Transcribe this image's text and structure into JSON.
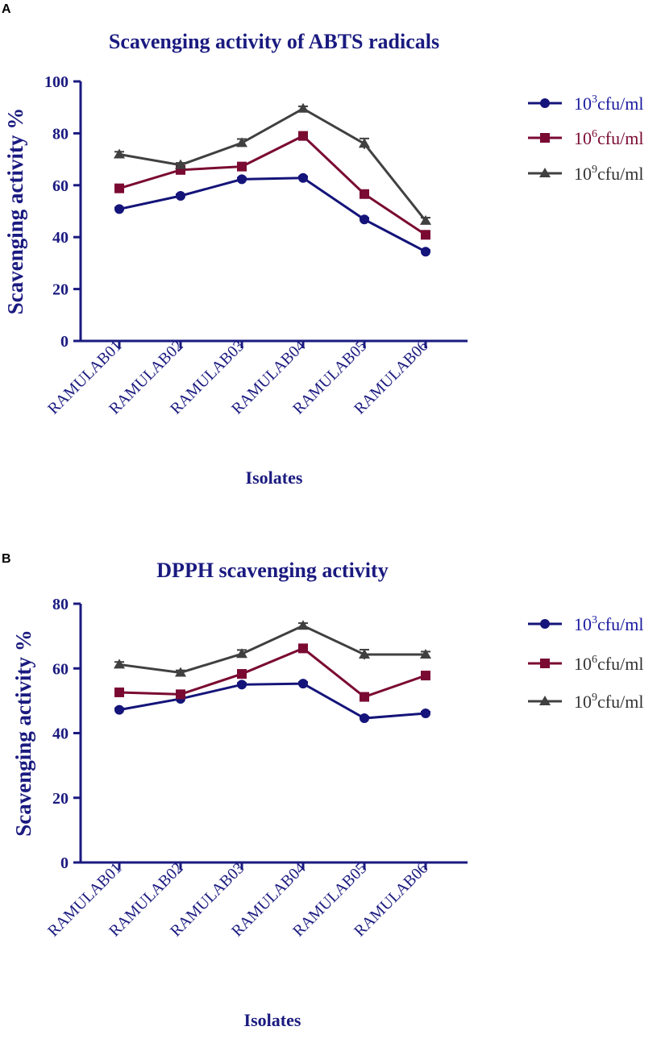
{
  "colors": {
    "axis": "#1a1a80",
    "series": [
      "#14147a",
      "#7a0a32",
      "#404040"
    ],
    "legend_text_a": [
      "#1a1aa0",
      "#7a0a32",
      "#333333"
    ],
    "legend_text_b": [
      "#1a1aa0",
      "#333333",
      "#333333"
    ]
  },
  "chart_data": [
    {
      "panel": "A",
      "type": "line",
      "title": "Scavenging activity of ABTS radicals",
      "xlabel": "Isolates",
      "ylabel": "Scavenging activity %",
      "ylim": [
        0,
        100
      ],
      "yticks": [
        0,
        20,
        40,
        60,
        80,
        100
      ],
      "categories": [
        "RAMULAB01",
        "RAMULAB02",
        "RAMULAB03",
        "RAMULAB04",
        "RAMULAB05",
        "RAMULAB06"
      ],
      "series": [
        {
          "name": "10^3cfu/ml",
          "base": "10",
          "exp": "3",
          "unit": "cfu/ml",
          "marker": "circle",
          "values": [
            50.8,
            55.9,
            62.3,
            62.8,
            46.8,
            34.4
          ],
          "errors": [
            0.6,
            0.6,
            0.6,
            0.6,
            0.6,
            0.6
          ]
        },
        {
          "name": "10^6cfu/ml",
          "base": "10",
          "exp": "6",
          "unit": "cfu/ml",
          "marker": "square",
          "values": [
            58.8,
            65.9,
            67.2,
            79.0,
            56.6,
            40.9
          ],
          "errors": [
            0.8,
            0.8,
            0.8,
            0.8,
            0.8,
            0.8
          ]
        },
        {
          "name": "10^9cfu/ml",
          "base": "10",
          "exp": "9",
          "unit": "cfu/ml",
          "marker": "triangle",
          "values": [
            71.9,
            67.8,
            76.3,
            89.5,
            76.0,
            46.3
          ],
          "errors": [
            1.0,
            0.8,
            1.5,
            0.9,
            2.0,
            1.2
          ]
        }
      ]
    },
    {
      "panel": "B",
      "type": "line",
      "title": "DPPH scavenging activity",
      "xlabel": "Isolates",
      "ylabel": "Scavenging activity %",
      "ylim": [
        0,
        80
      ],
      "yticks": [
        0,
        20,
        40,
        60,
        80
      ],
      "categories": [
        "RAMULAB01",
        "RAMULAB02",
        "RAMULAB03",
        "RAMULAB04",
        "RAMULAB05",
        "RAMULAB06"
      ],
      "series": [
        {
          "name": "10^3cfu/ml",
          "base": "10",
          "exp": "3",
          "unit": "cfu/ml",
          "marker": "circle",
          "values": [
            47.2,
            50.6,
            55.0,
            55.3,
            44.6,
            46.1
          ],
          "errors": [
            0.5,
            0.5,
            0.5,
            0.5,
            0.5,
            0.5
          ]
        },
        {
          "name": "10^6cfu/ml",
          "base": "10",
          "exp": "6",
          "unit": "cfu/ml",
          "marker": "square",
          "values": [
            52.6,
            52.0,
            58.3,
            66.2,
            51.2,
            57.8
          ],
          "errors": [
            0.7,
            0.7,
            0.7,
            0.7,
            0.7,
            0.7
          ]
        },
        {
          "name": "10^9cfu/ml",
          "base": "10",
          "exp": "9",
          "unit": "cfu/ml",
          "marker": "triangle",
          "values": [
            61.2,
            58.7,
            64.5,
            73.2,
            64.3,
            64.3
          ],
          "errors": [
            0.8,
            0.7,
            1.2,
            0.8,
            1.5,
            0.9
          ]
        }
      ]
    }
  ]
}
